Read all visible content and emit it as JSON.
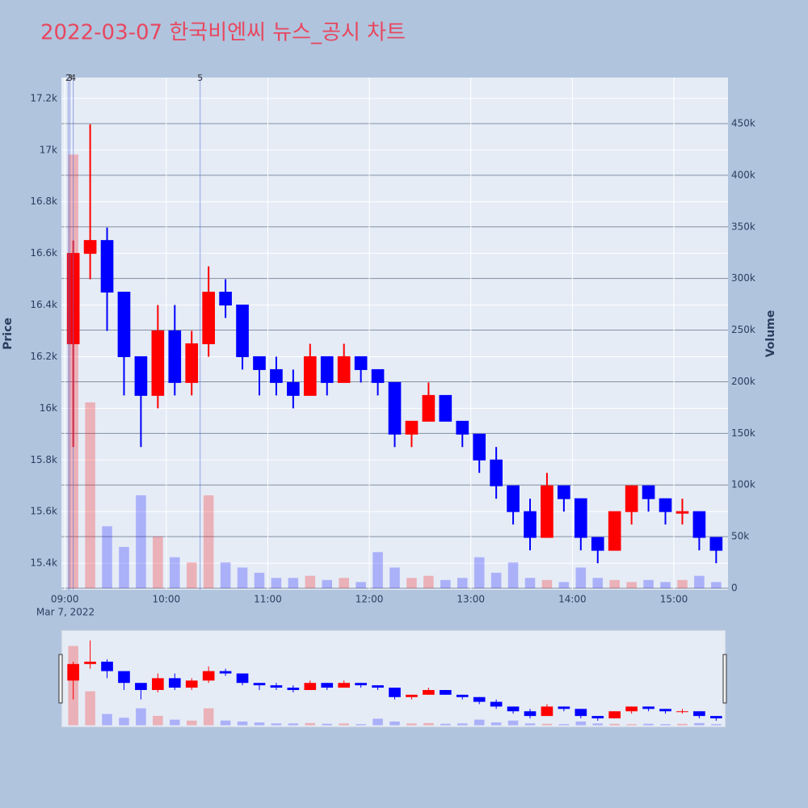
{
  "chart_data": {
    "type": "candlestick",
    "title": "2022-03-07 한국비엔씨 뉴스_공시 차트",
    "x": [
      "09:00",
      "09:10",
      "09:20",
      "09:30",
      "09:40",
      "09:50",
      "10:00",
      "10:10",
      "10:20",
      "10:30",
      "10:40",
      "10:50",
      "11:00",
      "11:10",
      "11:20",
      "11:30",
      "11:40",
      "11:50",
      "12:00",
      "12:10",
      "12:20",
      "12:30",
      "12:40",
      "12:50",
      "13:00",
      "13:10",
      "13:20",
      "13:30",
      "13:40",
      "13:50",
      "14:00",
      "14:10",
      "14:20",
      "14:30",
      "14:40",
      "14:50",
      "15:00",
      "15:10",
      "15:20"
    ],
    "open": [
      16250,
      16600,
      16650,
      16450,
      16200,
      16050,
      16300,
      16100,
      16250,
      16450,
      16400,
      16200,
      16150,
      16100,
      16050,
      16200,
      16100,
      16200,
      16150,
      16100,
      15900,
      15950,
      16050,
      15950,
      15900,
      15800,
      15700,
      15600,
      15500,
      15700,
      15650,
      15500,
      15450,
      15600,
      15700,
      15650,
      15600,
      15600,
      15500
    ],
    "high": [
      16650,
      17100,
      16700,
      16450,
      16200,
      16400,
      16400,
      16300,
      16550,
      16500,
      16400,
      16200,
      16200,
      16150,
      16250,
      16200,
      16250,
      16200,
      16150,
      16100,
      15950,
      16100,
      16050,
      15950,
      15900,
      15850,
      15700,
      15650,
      15750,
      15700,
      15650,
      15500,
      15600,
      15700,
      15700,
      15650,
      15650,
      15600,
      15500
    ],
    "low": [
      15850,
      16500,
      16300,
      16050,
      15850,
      16000,
      16050,
      16050,
      16200,
      16350,
      16150,
      16050,
      16050,
      16000,
      16050,
      16050,
      16100,
      16100,
      16050,
      15850,
      15850,
      15950,
      15950,
      15850,
      15750,
      15650,
      15550,
      15450,
      15500,
      15600,
      15450,
      15400,
      15450,
      15550,
      15600,
      15550,
      15550,
      15450,
      15400
    ],
    "close": [
      16600,
      16650,
      16450,
      16200,
      16050,
      16300,
      16100,
      16250,
      16450,
      16400,
      16200,
      16150,
      16100,
      16050,
      16200,
      16100,
      16200,
      16150,
      16100,
      15900,
      15950,
      16050,
      15950,
      15900,
      15800,
      15700,
      15600,
      15500,
      15700,
      15650,
      15500,
      15450,
      15600,
      15700,
      15650,
      15600,
      15600,
      15500,
      15450
    ],
    "volume": [
      420000,
      180000,
      60000,
      40000,
      90000,
      50000,
      30000,
      25000,
      90000,
      25000,
      20000,
      15000,
      10000,
      10000,
      12000,
      8000,
      10000,
      6000,
      35000,
      20000,
      10000,
      12000,
      8000,
      10000,
      30000,
      15000,
      25000,
      10000,
      8000,
      6000,
      20000,
      10000,
      8000,
      6000,
      8000,
      6000,
      8000,
      12000,
      6000
    ],
    "increasing_color": "#ff0000",
    "decreasing_color": "#0000ff",
    "xlim": [
      "08:58",
      "15:32"
    ],
    "xticks": [
      "09:00",
      "10:00",
      "11:00",
      "12:00",
      "13:00",
      "14:00",
      "15:00"
    ],
    "x_sublabel": "Mar 7, 2022",
    "ylim": [
      15297,
      17281
    ],
    "yticks": [
      {
        "value": 15400,
        "label": "15.4k"
      },
      {
        "value": 15600,
        "label": "15.6k"
      },
      {
        "value": 15800,
        "label": "15.8k"
      },
      {
        "value": 16000,
        "label": "16k"
      },
      {
        "value": 16200,
        "label": "16.2k"
      },
      {
        "value": 16400,
        "label": "16.4k"
      },
      {
        "value": 16600,
        "label": "16.6k"
      },
      {
        "value": 16800,
        "label": "16.8k"
      },
      {
        "value": 17000,
        "label": "17k"
      },
      {
        "value": 17200,
        "label": "17.2k"
      }
    ],
    "y2lim": [
      -1565,
      494600
    ],
    "y2ticks": [
      0,
      {
        "value": 50000,
        "label": "50k"
      },
      {
        "value": 100000,
        "label": "100k"
      },
      {
        "value": 150000,
        "label": "150k"
      },
      {
        "value": 200000,
        "label": "200k"
      },
      {
        "value": 250000,
        "label": "250k"
      },
      {
        "value": 300000,
        "label": "300k"
      },
      {
        "value": 350000,
        "label": "350k"
      },
      {
        "value": 400000,
        "label": "400k"
      },
      {
        "value": 450000,
        "label": "450k"
      }
    ],
    "y_label": "Price",
    "y2_label": "Volume",
    "annotations": [
      {
        "x": "09:02",
        "label": "2"
      },
      {
        "x": "09:03",
        "label": "3"
      },
      {
        "x": "09:05",
        "label": "4"
      },
      {
        "x": "10:20",
        "label": "5"
      }
    ],
    "grid": true,
    "range_slider": true
  }
}
